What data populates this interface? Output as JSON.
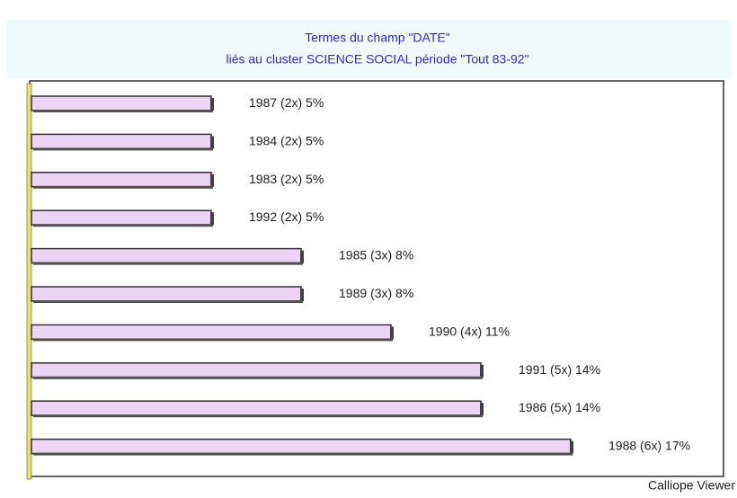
{
  "chart_data": {
    "type": "barh",
    "title": "Termes du champ \"DATE\"",
    "subtitle": "liés au cluster SCIENCE SOCIAL période \"Tout 83-92\"",
    "categories": [
      "1987",
      "1984",
      "1983",
      "1992",
      "1985",
      "1989",
      "1990",
      "1991",
      "1986",
      "1988"
    ],
    "values": [
      2,
      2,
      2,
      2,
      3,
      3,
      4,
      5,
      5,
      6
    ],
    "value_labels": [
      "(2x) 5%",
      "(2x) 5%",
      "(2x) 5%",
      "(2x) 5%",
      "(3x) 8%",
      "(3x) 8%",
      "(4x) 11%",
      "(5x) 14%",
      "(5x) 14%",
      "(6x) 17%"
    ],
    "color": "#ecd4f4",
    "source": "Calliope Viewer"
  }
}
